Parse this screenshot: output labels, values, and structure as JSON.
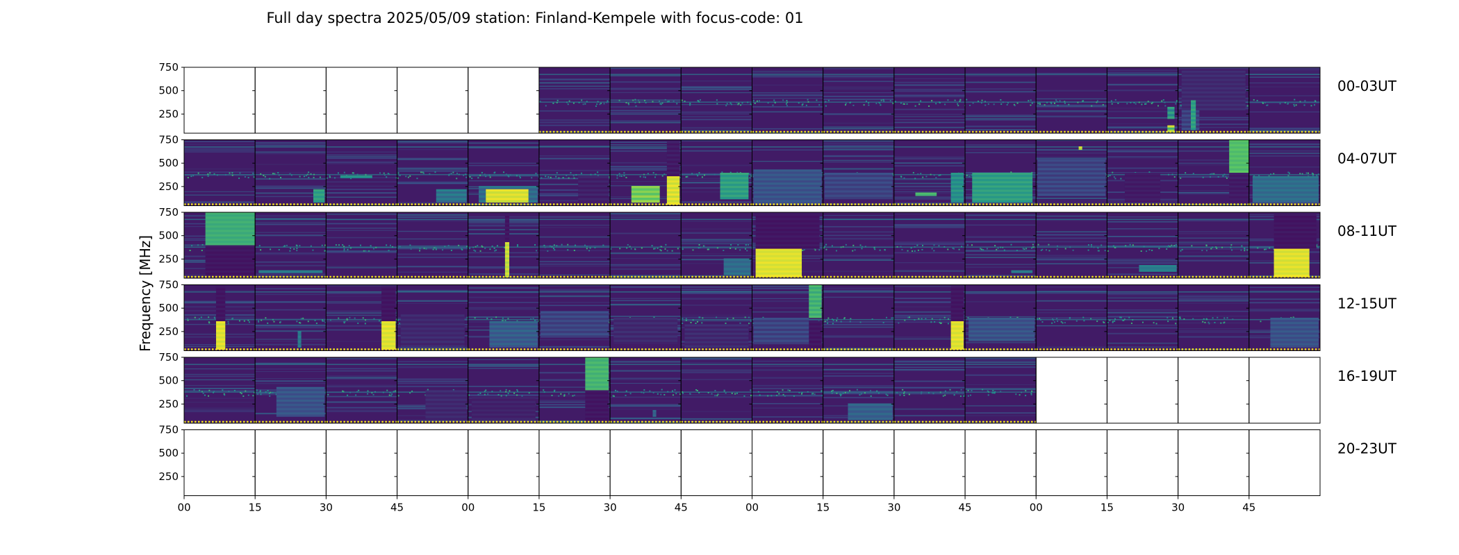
{
  "chart_data": {
    "type": "heatmap",
    "title": "Full day spectra 2025/05/09 station: Finland-Kempele with focus-code: 01",
    "ylabel": "Frequency [MHz]",
    "xlabel": "",
    "ylim": [
      45,
      750
    ],
    "y_ticks": [
      "750",
      "500",
      "250"
    ],
    "x_ticks": [
      "00",
      "15",
      "30",
      "45",
      "00",
      "15",
      "30",
      "45",
      "00",
      "15",
      "30",
      "45",
      "00",
      "15",
      "30",
      "45"
    ],
    "colormap": "viridis",
    "rows": [
      {
        "label": "00-03UT",
        "panels": [
          {
            "s": 0
          },
          {
            "s": 0
          },
          {
            "s": 0
          },
          {
            "s": 0
          },
          {
            "s": 0
          },
          {
            "s": 1
          },
          {
            "s": 1
          },
          {
            "s": 1
          },
          {
            "s": 1
          },
          {
            "s": 1
          },
          {
            "s": 1
          },
          {
            "s": 1
          },
          {
            "s": 1
          },
          {
            "s": 1,
            "b": [
              [
                0.85,
                0.95,
                0.02,
                0.12,
                0.35,
                0.95
              ],
              [
                0.85,
                0.95,
                0.22,
                0.4,
                0.25,
                0.6
              ]
            ]
          },
          {
            "s": 1,
            "b": [
              [
                0.05,
                0.3,
                0.05,
                0.35,
                0.08,
                0.25
              ],
              [
                0.05,
                0.95,
                0.35,
                0.95,
                0.06,
                0.15
              ],
              [
                0.18,
                0.25,
                0.05,
                0.5,
                0.45,
                0.6
              ]
            ]
          },
          {
            "s": 1
          }
        ]
      },
      {
        "label": "04-07UT",
        "panels": [
          {
            "s": 1
          },
          {
            "s": 1,
            "b": [
              [
                0.82,
                0.98,
                0.05,
                0.25,
                0.45,
                0.6
              ]
            ]
          },
          {
            "s": 1,
            "b": [
              [
                0.2,
                0.65,
                0.42,
                0.46,
                0.4,
                0.55
              ]
            ]
          },
          {
            "s": 1,
            "b": [
              [
                0.55,
                0.98,
                0.05,
                0.25,
                0.2,
                0.45
              ]
            ]
          },
          {
            "s": 1,
            "b": [
              [
                0.15,
                0.98,
                0.05,
                0.3,
                0.2,
                0.4
              ],
              [
                0.25,
                0.85,
                0.05,
                0.25,
                0.85,
                0.98
              ]
            ]
          },
          {
            "s": 1,
            "b": [
              [
                0.55,
                0.98,
                0.05,
                0.45,
                0.03,
                0.12
              ]
            ]
          },
          {
            "s": 1,
            "b": [
              [
                0.3,
                0.7,
                0.05,
                0.3,
                0.6,
                0.85
              ],
              [
                0.8,
                0.98,
                0.02,
                0.45,
                0.85,
                0.98
              ],
              [
                0.8,
                0.98,
                0.45,
                0.98,
                0.02,
                0.1
              ]
            ]
          },
          {
            "s": 1,
            "b": [
              [
                0.55,
                0.95,
                0.1,
                0.5,
                0.45,
                0.6
              ]
            ]
          },
          {
            "s": 1,
            "b": [
              [
                0.02,
                0.98,
                0.02,
                0.55,
                0.15,
                0.3
              ]
            ]
          },
          {
            "s": 1,
            "b": [
              [
                0.02,
                0.98,
                0.1,
                0.5,
                0.1,
                0.25
              ]
            ]
          },
          {
            "s": 1,
            "b": [
              [
                0.3,
                0.6,
                0.15,
                0.2,
                0.6,
                0.7
              ],
              [
                0.8,
                0.98,
                0.05,
                0.5,
                0.35,
                0.55
              ]
            ]
          },
          {
            "s": 1,
            "b": [
              [
                0.1,
                0.95,
                0.05,
                0.5,
                0.45,
                0.6
              ]
            ]
          },
          {
            "s": 1,
            "b": [
              [
                0.02,
                0.98,
                0.15,
                0.7,
                0.1,
                0.25
              ],
              [
                0.6,
                0.65,
                0.85,
                0.9,
                0.8,
                0.95
              ]
            ]
          },
          {
            "s": 1,
            "b": [
              [
                0.25,
                0.75,
                0.05,
                0.5,
                0.03,
                0.1
              ]
            ]
          },
          {
            "s": 1,
            "b": [
              [
                0.72,
                1.0,
                0.5,
                1.0,
                0.6,
                0.75
              ],
              [
                0.72,
                1.0,
                0.05,
                0.5,
                0.03,
                0.1
              ]
            ]
          },
          {
            "s": 1,
            "b": [
              [
                0.05,
                0.98,
                0.05,
                0.45,
                0.25,
                0.4
              ]
            ]
          }
        ]
      },
      {
        "label": "08-11UT",
        "panels": [
          {
            "s": 1,
            "b": [
              [
                0.3,
                1.0,
                0.5,
                1.0,
                0.55,
                0.65
              ],
              [
                0.3,
                1.0,
                0.02,
                0.5,
                0.02,
                0.08
              ]
            ]
          },
          {
            "s": 1,
            "b": [
              [
                0.05,
                0.95,
                0.08,
                0.12,
                0.35,
                0.45
              ]
            ]
          },
          {
            "s": 1
          },
          {
            "s": 1
          },
          {
            "s": 1,
            "b": [
              [
                0.52,
                0.58,
                0.02,
                0.55,
                0.8,
                0.95
              ],
              [
                0.52,
                0.58,
                0.55,
                0.98,
                0.02,
                0.08
              ]
            ]
          },
          {
            "s": 1
          },
          {
            "s": 1
          },
          {
            "s": 1,
            "b": [
              [
                0.6,
                0.98,
                0.05,
                0.3,
                0.25,
                0.4
              ]
            ]
          },
          {
            "s": 1,
            "b": [
              [
                0.05,
                0.7,
                0.02,
                0.45,
                0.88,
                0.98
              ],
              [
                0.05,
                0.95,
                0.45,
                0.98,
                0.02,
                0.08
              ]
            ]
          },
          {
            "s": 1
          },
          {
            "s": 1
          },
          {
            "s": 1,
            "b": [
              [
                0.65,
                0.95,
                0.08,
                0.12,
                0.35,
                0.45
              ]
            ]
          },
          {
            "s": 1
          },
          {
            "s": 1,
            "b": [
              [
                0.45,
                0.98,
                0.1,
                0.2,
                0.35,
                0.45
              ]
            ]
          },
          {
            "s": 1
          },
          {
            "s": 1,
            "b": [
              [
                0.35,
                0.85,
                0.02,
                0.45,
                0.88,
                0.98
              ],
              [
                0.35,
                0.95,
                0.45,
                0.98,
                0.02,
                0.08
              ]
            ]
          }
        ]
      },
      {
        "label": "12-15UT",
        "panels": [
          {
            "s": 1,
            "b": [
              [
                0.45,
                0.58,
                0.02,
                0.45,
                0.88,
                0.98
              ],
              [
                0.45,
                0.58,
                0.45,
                0.98,
                0.02,
                0.08
              ]
            ]
          },
          {
            "s": 1,
            "b": [
              [
                0.6,
                0.65,
                0.05,
                0.3,
                0.3,
                0.45
              ]
            ]
          },
          {
            "s": 1,
            "b": [
              [
                0.78,
                0.98,
                0.02,
                0.45,
                0.88,
                0.98
              ],
              [
                0.78,
                0.98,
                0.45,
                0.98,
                0.02,
                0.08
              ]
            ]
          },
          {
            "s": 1,
            "b": [
              [
                0.05,
                0.95,
                0.05,
                0.55,
                0.05,
                0.15
              ]
            ]
          },
          {
            "s": 1,
            "b": [
              [
                0.3,
                0.98,
                0.05,
                0.45,
                0.15,
                0.35
              ]
            ]
          },
          {
            "s": 1,
            "b": [
              [
                0.02,
                0.98,
                0.2,
                0.6,
                0.1,
                0.25
              ]
            ]
          },
          {
            "s": 1,
            "b": [
              [
                0.05,
                0.95,
                0.1,
                0.5,
                0.05,
                0.15
              ]
            ]
          },
          {
            "s": 1,
            "b": [
              [
                0.05,
                0.95,
                0.05,
                0.4,
                0.05,
                0.15
              ]
            ]
          },
          {
            "s": 1,
            "b": [
              [
                0.8,
                0.98,
                0.5,
                1.0,
                0.5,
                0.7
              ],
              [
                0.8,
                0.98,
                0.05,
                0.45,
                0.02,
                0.08
              ],
              [
                0.02,
                0.8,
                0.1,
                0.5,
                0.1,
                0.25
              ]
            ]
          },
          {
            "s": 1
          },
          {
            "s": 1,
            "b": [
              [
                0.8,
                0.98,
                0.02,
                0.45,
                0.88,
                0.98
              ],
              [
                0.8,
                0.98,
                0.45,
                0.98,
                0.02,
                0.08
              ]
            ]
          },
          {
            "s": 1,
            "b": [
              [
                0.05,
                0.98,
                0.15,
                0.5,
                0.15,
                0.3
              ]
            ]
          },
          {
            "s": 1
          },
          {
            "s": 1
          },
          {
            "s": 1
          },
          {
            "s": 1,
            "b": [
              [
                0.3,
                0.98,
                0.05,
                0.5,
                0.15,
                0.3
              ]
            ]
          }
        ]
      },
      {
        "label": "16-19UT",
        "panels": [
          {
            "s": 1
          },
          {
            "s": 1,
            "b": [
              [
                0.3,
                0.98,
                0.1,
                0.55,
                0.15,
                0.3
              ]
            ]
          },
          {
            "s": 1
          },
          {
            "s": 1,
            "b": [
              [
                0.4,
                0.98,
                0.05,
                0.5,
                0.05,
                0.15
              ]
            ]
          },
          {
            "s": 1,
            "b": [
              [
                0.05,
                0.95,
                0.05,
                0.4,
                0.05,
                0.12
              ]
            ]
          },
          {
            "s": 1,
            "b": [
              [
                0.65,
                0.98,
                0.5,
                1.0,
                0.55,
                0.7
              ],
              [
                0.65,
                0.98,
                0.02,
                0.5,
                0.02,
                0.08
              ]
            ]
          },
          {
            "s": 1,
            "b": [
              [
                0.6,
                0.65,
                0.1,
                0.2,
                0.25,
                0.35
              ]
            ]
          },
          {
            "s": 1
          },
          {
            "s": 1
          },
          {
            "s": 1,
            "b": [
              [
                0.35,
                0.98,
                0.05,
                0.3,
                0.2,
                0.35
              ]
            ]
          },
          {
            "s": 1
          },
          {
            "s": 1
          },
          {
            "s": 0
          },
          {
            "s": 0
          },
          {
            "s": 0
          },
          {
            "s": 0
          }
        ]
      },
      {
        "label": "20-23UT",
        "panels": [
          {
            "s": 0
          },
          {
            "s": 0
          },
          {
            "s": 0
          },
          {
            "s": 0
          },
          {
            "s": 0
          },
          {
            "s": 0
          },
          {
            "s": 0
          },
          {
            "s": 0
          },
          {
            "s": 0
          },
          {
            "s": 0
          },
          {
            "s": 0
          },
          {
            "s": 0
          },
          {
            "s": 0
          },
          {
            "s": 0
          },
          {
            "s": 0
          },
          {
            "s": 0
          }
        ]
      }
    ]
  }
}
